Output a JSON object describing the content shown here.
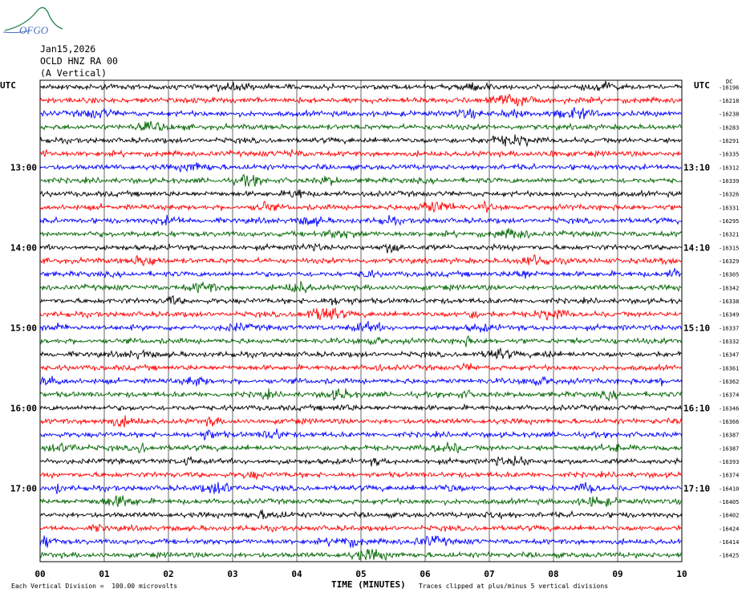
{
  "logo": {
    "text": "OFGO"
  },
  "header": {
    "date": "Jan15,2026",
    "station": "OCLD HNZ RA 00",
    "component": "(A Vertical)"
  },
  "footer": {
    "scale_note": "Each Vertical Division =  100.00 microvolts",
    "clip_note": "Traces clipped at plus/minus 5 vertical divisions"
  },
  "chart_data": {
    "type": "line",
    "title": "",
    "xlabel": "TIME (MINUTES)",
    "ylabel": "",
    "left_axis_label": "UTC",
    "right_axis_label": "UTC",
    "right_column_header": "DC",
    "x_ticks": [
      "00",
      "01",
      "02",
      "03",
      "04",
      "05",
      "06",
      "07",
      "08",
      "09",
      "10"
    ],
    "xlim": [
      0,
      10
    ],
    "grid": true,
    "trace_colors": [
      "#000000",
      "#ff0000",
      "#0000ff",
      "#006400"
    ],
    "left_time_labels": [
      {
        "trace": 6,
        "label": "13:00"
      },
      {
        "trace": 12,
        "label": "14:00"
      },
      {
        "trace": 18,
        "label": "15:00"
      },
      {
        "trace": 24,
        "label": "16:00"
      },
      {
        "trace": 30,
        "label": "17:00"
      }
    ],
    "right_time_labels": [
      {
        "trace": 6,
        "label": "13:10"
      },
      {
        "trace": 12,
        "label": "14:10"
      },
      {
        "trace": 18,
        "label": "15:10"
      },
      {
        "trace": 24,
        "label": "16:10"
      },
      {
        "trace": 30,
        "label": "17:10"
      }
    ],
    "dc_offsets": [
      "-16196",
      "-16218",
      "-16238",
      "-16283",
      "-16291",
      "-16335",
      "-16312",
      "-16339",
      "-16326",
      "-16331",
      "-16295",
      "-16321",
      "-16315",
      "-16329",
      "-16305",
      "-16342",
      "-16338",
      "-16349",
      "-16337",
      "-16332",
      "-16347",
      "-16361",
      "-16362",
      "-16374",
      "-16346",
      "-16366",
      "-16387",
      "-16387",
      "-16393",
      "-16374",
      "-16410",
      "-16405",
      "-16402",
      "-16424",
      "-16414",
      "-16425"
    ]
  }
}
